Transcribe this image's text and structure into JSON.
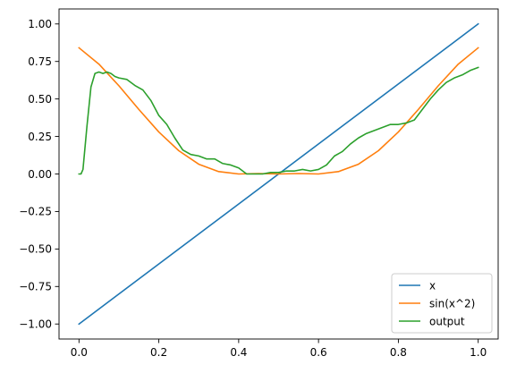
{
  "chart_data": {
    "type": "line",
    "title": "",
    "xlabel": "",
    "ylabel": "",
    "xlim": [
      -0.05,
      1.05
    ],
    "ylim": [
      -1.1,
      1.1
    ],
    "xticks": [
      0.0,
      0.2,
      0.4,
      0.6,
      0.8,
      1.0
    ],
    "xtick_labels": [
      "0.0",
      "0.2",
      "0.4",
      "0.6",
      "0.8",
      "1.0"
    ],
    "yticks": [
      -1.0,
      -0.75,
      -0.5,
      -0.25,
      0.0,
      0.25,
      0.5,
      0.75,
      1.0
    ],
    "ytick_labels": [
      "−1.00",
      "−0.75",
      "−0.50",
      "−0.25",
      "0.00",
      "0.25",
      "0.50",
      "0.75",
      "1.00"
    ],
    "grid": false,
    "legend_position": "lower-right",
    "series": [
      {
        "name": "x",
        "color": "#1f77b4",
        "x": [
          0.0,
          1.0
        ],
        "y": [
          -1.0,
          1.0
        ]
      },
      {
        "name": "sin(x^2)",
        "color": "#ff7f0e",
        "x": [
          0.0,
          0.05,
          0.1,
          0.15,
          0.2,
          0.25,
          0.3,
          0.35,
          0.4,
          0.45,
          0.5,
          0.55,
          0.6,
          0.65,
          0.7,
          0.75,
          0.8,
          0.85,
          0.9,
          0.95,
          1.0
        ],
        "y": [
          0.841,
          0.732,
          0.588,
          0.43,
          0.28,
          0.155,
          0.065,
          0.016,
          0.0,
          0.003,
          0.0,
          0.003,
          0.0,
          0.016,
          0.065,
          0.155,
          0.28,
          0.43,
          0.588,
          0.732,
          0.841
        ]
      },
      {
        "name": "output",
        "color": "#2ca02c",
        "x": [
          0.0,
          0.005,
          0.01,
          0.02,
          0.03,
          0.04,
          0.05,
          0.06,
          0.07,
          0.08,
          0.09,
          0.1,
          0.12,
          0.14,
          0.16,
          0.18,
          0.2,
          0.22,
          0.24,
          0.26,
          0.28,
          0.3,
          0.32,
          0.34,
          0.36,
          0.38,
          0.4,
          0.42,
          0.44,
          0.46,
          0.48,
          0.5,
          0.52,
          0.54,
          0.56,
          0.58,
          0.6,
          0.62,
          0.64,
          0.66,
          0.68,
          0.7,
          0.72,
          0.74,
          0.76,
          0.78,
          0.8,
          0.82,
          0.84,
          0.86,
          0.88,
          0.9,
          0.92,
          0.94,
          0.96,
          0.98,
          1.0
        ],
        "y": [
          0.0,
          0.0,
          0.03,
          0.32,
          0.58,
          0.67,
          0.68,
          0.67,
          0.68,
          0.67,
          0.65,
          0.64,
          0.63,
          0.59,
          0.56,
          0.49,
          0.39,
          0.33,
          0.24,
          0.16,
          0.13,
          0.12,
          0.1,
          0.1,
          0.07,
          0.06,
          0.04,
          0.0,
          0.0,
          0.0,
          0.01,
          0.01,
          0.02,
          0.02,
          0.03,
          0.02,
          0.03,
          0.06,
          0.12,
          0.15,
          0.2,
          0.24,
          0.27,
          0.29,
          0.31,
          0.33,
          0.33,
          0.34,
          0.36,
          0.43,
          0.5,
          0.56,
          0.61,
          0.64,
          0.66,
          0.69,
          0.71
        ]
      }
    ]
  }
}
